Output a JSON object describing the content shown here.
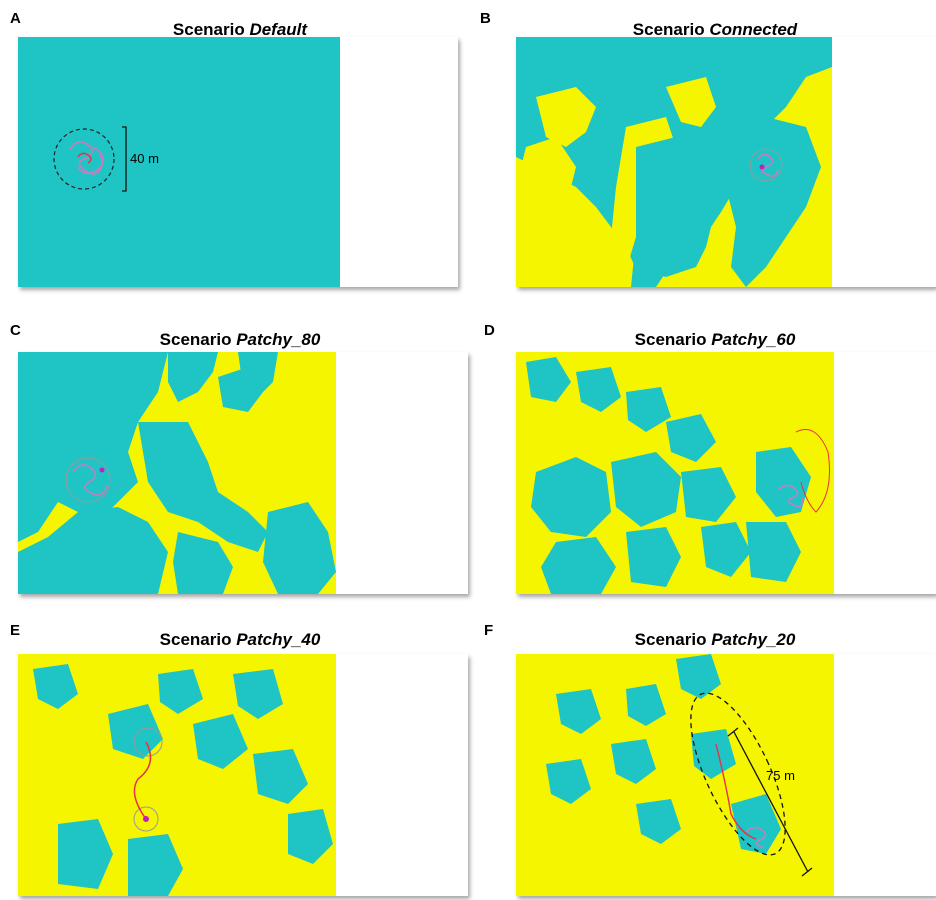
{
  "colors": {
    "habitat": "#1fc4c4",
    "matrix": "#f5f500",
    "track_main": "#e8304a",
    "track_secondary": "#c77dbf",
    "outline": "#333333",
    "blank": "#ffffff"
  },
  "panels": [
    {
      "letter": "A",
      "prefix": "Scenario ",
      "name": "Default",
      "scale_label": "40 m"
    },
    {
      "letter": "B",
      "prefix": "Scenario ",
      "name": "Connected"
    },
    {
      "letter": "C",
      "prefix": "Scenario ",
      "name": "Patchy_80"
    },
    {
      "letter": "D",
      "prefix": "Scenario ",
      "name": "Patchy_60"
    },
    {
      "letter": "E",
      "prefix": "Scenario ",
      "name": "Patchy_40"
    },
    {
      "letter": "F",
      "prefix": "Scenario ",
      "name": "Patchy_20",
      "scale_label": "75 m"
    }
  ]
}
